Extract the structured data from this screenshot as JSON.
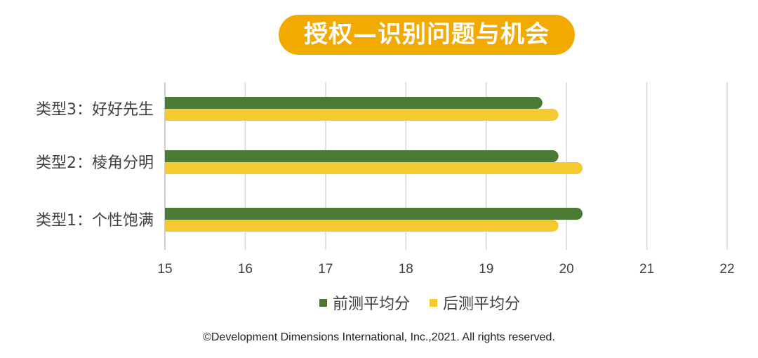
{
  "title": "授权—识别问题与机会",
  "copyright": "©Development Dimensions International, Inc.,2021. All rights reserved.",
  "colors": {
    "title_bg": "#f2a900",
    "series_pre": "#4a7a34",
    "series_post": "#f5c930",
    "grid": "#d9d9d9"
  },
  "chart_data": {
    "type": "bar",
    "orientation": "horizontal",
    "categories": [
      "类型3：好好先生",
      "类型2：棱角分明",
      "类型1：个性饱满"
    ],
    "series": [
      {
        "name": "前测平均分",
        "values": [
          19.7,
          19.9,
          20.2
        ]
      },
      {
        "name": "后测平均分",
        "values": [
          19.9,
          20.2,
          19.9
        ]
      }
    ],
    "xlim": [
      15,
      22
    ],
    "x_ticks": [
      "15",
      "16",
      "17",
      "18",
      "19",
      "20",
      "21",
      "22"
    ],
    "grid": true,
    "legend_position": "bottom"
  }
}
